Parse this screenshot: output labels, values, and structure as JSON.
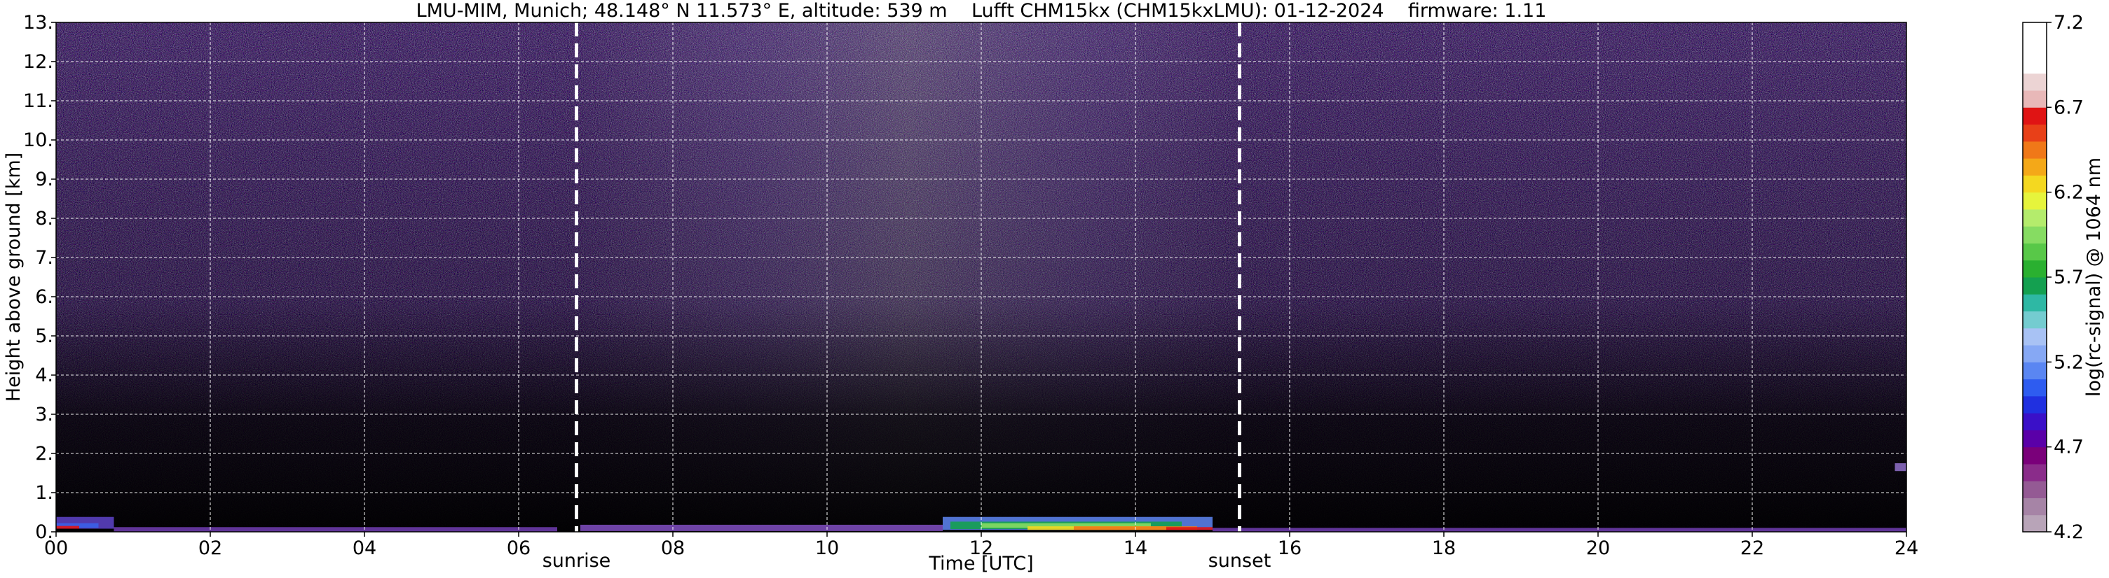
{
  "chart_data": {
    "type": "heatmap",
    "title": "LMU-MIM, Munich; 48.148° N 11.573° E, altitude: 539 m    Lufft CHM15kx (CHM15kxLMU): 01-12-2024    firmware: 1.11",
    "xlabel": "Time [UTC]",
    "ylabel": "Height above ground [km]",
    "xlim": [
      0,
      24
    ],
    "ylim": [
      0,
      13
    ],
    "x_ticks": [
      0,
      2,
      4,
      6,
      8,
      10,
      12,
      14,
      16,
      18,
      20,
      22,
      24
    ],
    "x_tick_labels": [
      "00",
      "02",
      "04",
      "06",
      "08",
      "10",
      "12",
      "14",
      "16",
      "18",
      "20",
      "22",
      "24"
    ],
    "y_ticks": [
      0,
      1,
      2,
      3,
      4,
      5,
      6,
      7,
      8,
      9,
      10,
      11,
      12,
      13
    ],
    "y_tick_labels": [
      "0.",
      "1.",
      "2.",
      "3.",
      "4.",
      "5.",
      "6.",
      "7.",
      "8.",
      "9.",
      "10.",
      "11.",
      "12.",
      "13."
    ],
    "grid": true,
    "events": [
      {
        "name": "sunrise",
        "time": 6.75
      },
      {
        "name": "sunset",
        "time": 15.35
      }
    ],
    "colorbar": {
      "label": "log(rc-signal) @ 1064 nm",
      "range": [
        4.2,
        7.2
      ],
      "tick_values": [
        4.2,
        4.7,
        5.2,
        5.7,
        6.2,
        6.7,
        7.2
      ],
      "tick_labels": [
        "4.2",
        "4.7",
        "5.2",
        "5.7",
        "6.2",
        "6.7",
        "7.2"
      ],
      "colors": [
        "#b8a4b8",
        "#a684a6",
        "#945a94",
        "#8a2c8a",
        "#7a007a",
        "#5a00a8",
        "#3a10c8",
        "#2030e0",
        "#2e5cf0",
        "#5a86f2",
        "#86a8f4",
        "#a8c2f4",
        "#74ccd0",
        "#2eb8a4",
        "#14a050",
        "#2ab030",
        "#58c848",
        "#86dc62",
        "#b4ec6c",
        "#e6f43c",
        "#f4d820",
        "#f4a818",
        "#f07818",
        "#e84018",
        "#e01414",
        "#e8b8b8",
        "#ecd4d4",
        "#ffffff",
        "#ffffff",
        "#ffffff"
      ]
    }
  }
}
